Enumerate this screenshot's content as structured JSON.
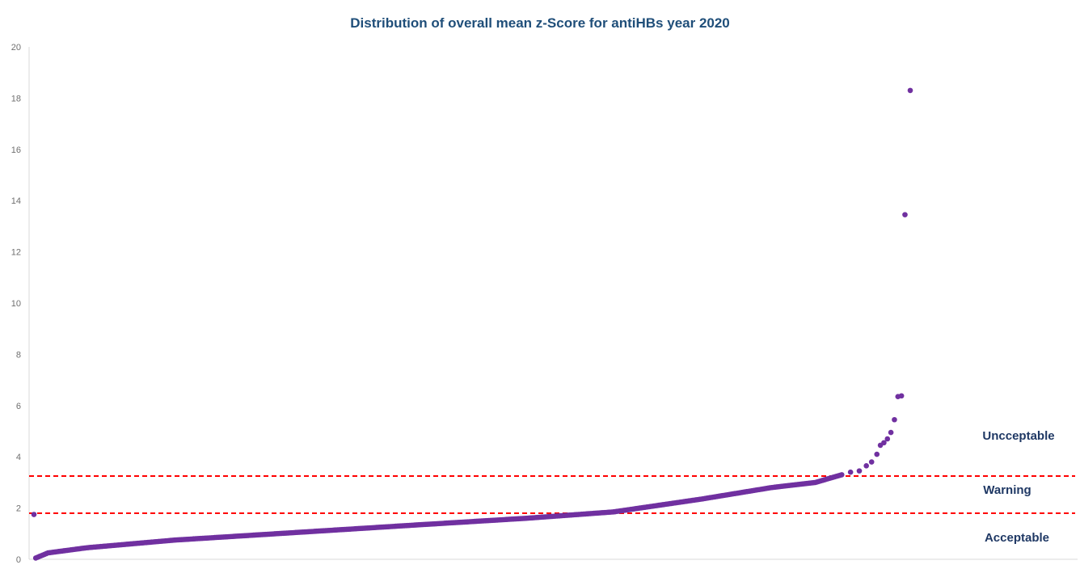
{
  "chart_data": {
    "type": "scatter",
    "title": "Distribution of overall mean z-Score for antiHBs year 2020",
    "xlabel": "",
    "ylabel": "",
    "ylim": [
      0,
      20
    ],
    "y_ticks": [
      "0",
      "2",
      "4",
      "6",
      "8",
      "10",
      "12",
      "14",
      "16",
      "18",
      "20"
    ],
    "grid": false,
    "legend": "none",
    "point_count": 494,
    "y_min_sorted": 0.05,
    "y_max_main": 3.3,
    "points": [
      {
        "x": 0,
        "y": 1.75
      },
      {
        "x": 465,
        "y": 3.4
      },
      {
        "x": 470,
        "y": 3.45
      },
      {
        "x": 474,
        "y": 3.65
      },
      {
        "x": 477,
        "y": 3.8
      },
      {
        "x": 480,
        "y": 4.1
      },
      {
        "x": 482,
        "y": 4.45
      },
      {
        "x": 484,
        "y": 4.55
      },
      {
        "x": 486,
        "y": 4.7
      },
      {
        "x": 488,
        "y": 4.95
      },
      {
        "x": 490,
        "y": 5.45
      },
      {
        "x": 492,
        "y": 6.35
      },
      {
        "x": 494,
        "y": 6.38
      },
      {
        "x": 496,
        "y": 13.45
      },
      {
        "x": 499,
        "y": 18.3
      }
    ],
    "curve_control": {
      "x": [
        1,
        8,
        30,
        80,
        150,
        220,
        280,
        330,
        380,
        420,
        445,
        460
      ],
      "y": [
        0.05,
        0.25,
        0.45,
        0.75,
        1.05,
        1.35,
        1.6,
        1.85,
        2.35,
        2.8,
        3.0,
        3.3
      ]
    },
    "thresholds": [
      {
        "name": "Warning",
        "y": 3.25
      },
      {
        "name": "Acceptable",
        "y": 1.8
      }
    ],
    "zone_labels": [
      "Uncceptable",
      "Warning",
      "Acceptable"
    ],
    "colors": {
      "points": "#7030a0",
      "threshold": "#ff0000",
      "title": "#1f4e79",
      "zone_labels": "#1f3864"
    }
  }
}
